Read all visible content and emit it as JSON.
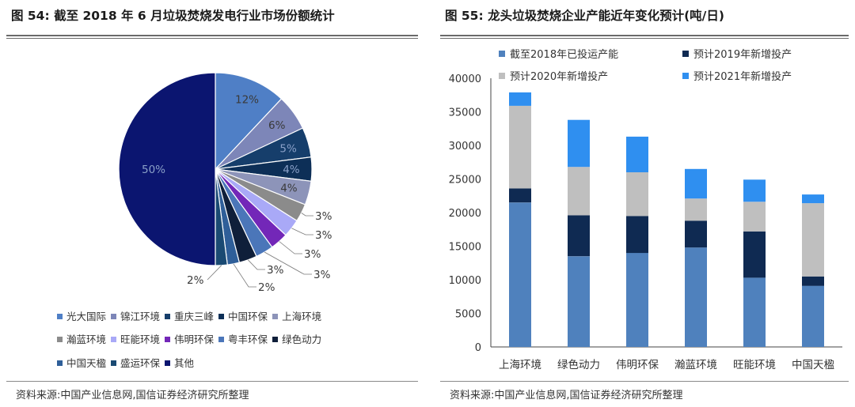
{
  "charts": [
    {
      "figure_label": "图 54:",
      "title": "截至 2018 年 6 月垃圾焚烧发电行业市场份额统计",
      "source": "资料来源:中国产业信息网,国信证券经济研究所整理"
    },
    {
      "figure_label": "图 55:",
      "title": "龙头垃圾焚烧企业产能近年变化预计(吨/日)",
      "source": "资料来源:中国产业信息网,国信证券经济研究所整理"
    }
  ],
  "chart_data": [
    {
      "type": "pie",
      "title": "截至 2018 年 6 月垃圾焚烧发电行业市场份额统计",
      "legend_position": "bottom",
      "slices": [
        {
          "name": "光大国际",
          "value": 12,
          "label": "12%",
          "color": "#4f7fc6"
        },
        {
          "name": "锦江环境",
          "value": 6,
          "label": "6%",
          "color": "#7d86b8"
        },
        {
          "name": "重庆三峰",
          "value": 5,
          "label": "5%",
          "color": "#163e6b"
        },
        {
          "name": "中国环保",
          "value": 4,
          "label": "4%",
          "color": "#0d2f57"
        },
        {
          "name": "上海环境",
          "value": 4,
          "label": "4%",
          "color": "#8d94b9"
        },
        {
          "name": "瀚蓝环境",
          "value": 3,
          "label": "3%",
          "color": "#8b8b8b"
        },
        {
          "name": "旺能环境",
          "value": 3,
          "label": "3%",
          "color": "#a9a9f7"
        },
        {
          "name": "伟明环保",
          "value": 3,
          "label": "3%",
          "color": "#7327b8"
        },
        {
          "name": "粤丰环保",
          "value": 3,
          "label": "3%",
          "color": "#4b76b9"
        },
        {
          "name": "绿色动力",
          "value": 3,
          "label": "3%",
          "color": "#0f1f3a"
        },
        {
          "name": "中国天楹",
          "value": 2,
          "label": "2%",
          "color": "#2f5f99"
        },
        {
          "name": "盛运环保",
          "value": 2,
          "label": "2%",
          "color": "#1a4a73"
        },
        {
          "name": "其他",
          "value": 50,
          "label": "50%",
          "color": "#0b1570"
        }
      ]
    },
    {
      "type": "bar",
      "stacked": true,
      "title": "龙头垃圾焚烧企业产能近年变化预计(吨/日)",
      "categories": [
        "上海环境",
        "绿色动力",
        "伟明环保",
        "瀚蓝环境",
        "旺能环境",
        "中国天楹"
      ],
      "ylim": [
        0,
        40000
      ],
      "yticks": [
        0,
        5000,
        10000,
        15000,
        20000,
        25000,
        30000,
        35000,
        40000
      ],
      "legend_position": "top",
      "grid": false,
      "series": [
        {
          "name": "截至2018年已投运产能",
          "color": "#4f81bd",
          "values": [
            21500,
            13500,
            14000,
            14800,
            10300,
            9100
          ]
        },
        {
          "name": "预计2019年新增投产",
          "color": "#0f2a52",
          "values": [
            2100,
            6100,
            5500,
            4000,
            6900,
            1400
          ]
        },
        {
          "name": "预计2020年新增投产",
          "color": "#bfbfbf",
          "values": [
            12300,
            7200,
            6500,
            3300,
            4400,
            10900
          ]
        },
        {
          "name": "预计2021年新增投产",
          "color": "#2f8ff0",
          "values": [
            2000,
            7000,
            5300,
            4400,
            3300,
            1300
          ]
        }
      ]
    }
  ]
}
